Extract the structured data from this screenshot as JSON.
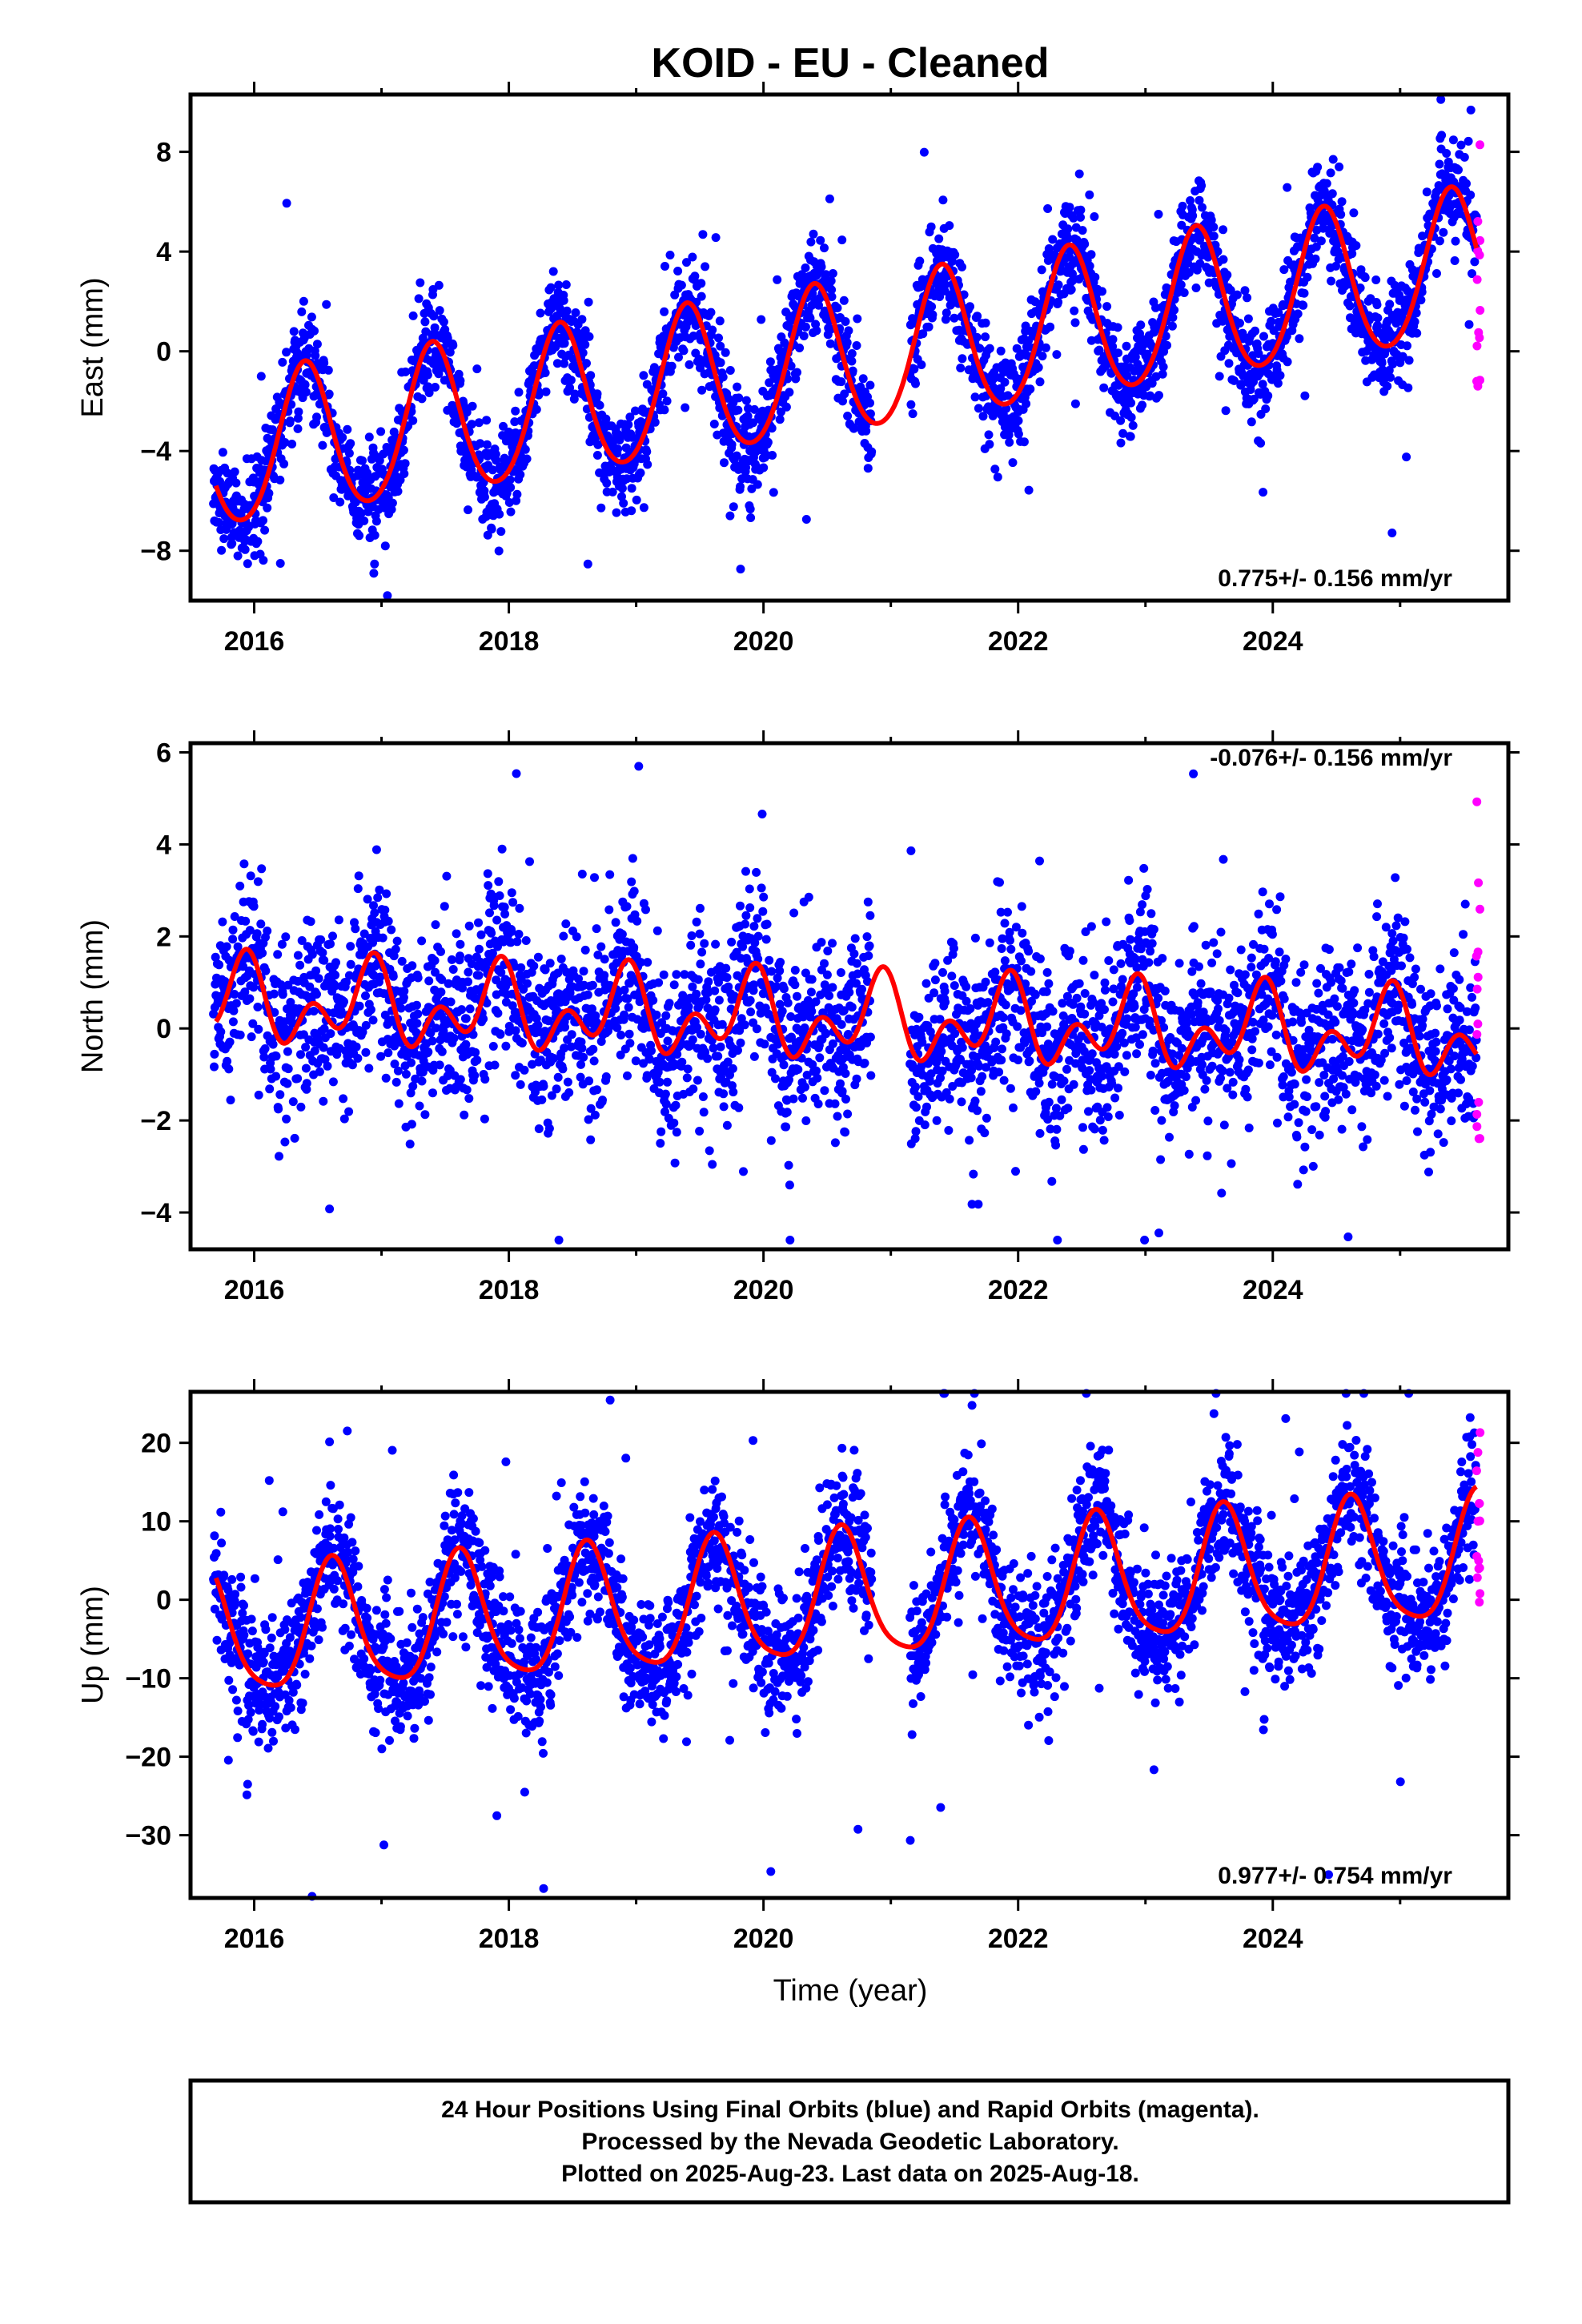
{
  "title": "KOID  - EU - Cleaned",
  "xlabel": "Time (year)",
  "colors": {
    "final": "#0000ff",
    "rapid": "#ff00ff",
    "model": "#ff0000",
    "frame": "#000000"
  },
  "footer": {
    "line1": "24 Hour Positions Using Final Orbits (blue) and Rapid Orbits (magenta).",
    "line2": "Processed by the Nevada Geodetic Laboratory.",
    "line3": "Plotted on 2025-Aug-23. Last data on 2025-Aug-18."
  },
  "chart_data": [
    {
      "type": "scatter",
      "component": "East",
      "ylabel": "East (mm)",
      "rate_label": "0.775+/- 0.156 mm/yr",
      "xlim": [
        2015.5,
        2025.85
      ],
      "ylim": [
        -10.0,
        10.3
      ],
      "xticks": [
        2016,
        2018,
        2020,
        2022,
        2024
      ],
      "yticks": [
        -8,
        -4,
        0,
        4,
        8
      ],
      "data_start": 2015.68,
      "rapid_start": 2025.6,
      "data_end": 2025.63,
      "gaps": [
        [
          2020.85,
          2021.15
        ]
      ],
      "series": [
        {
          "name": "Final Orbits (blue)",
          "trend": {
            "t0": 2020.5,
            "offset": -0.5,
            "rate": 0.775
          },
          "annual_amplitude": 3.0,
          "annual_peak": 0.4,
          "semiannual_amplitude": 0.3,
          "semiannual_peak": 0.4,
          "scatter": 1.0,
          "outlier_fraction": 0.03,
          "outlier_scale": 3.0
        },
        {
          "name": "Rapid Orbits (magenta)",
          "y_range": [
            -1.5,
            9.0
          ]
        }
      ],
      "model_fit": {
        "name": "model",
        "start": 2015.7,
        "end": 2025.6
      }
    },
    {
      "type": "scatter",
      "component": "North",
      "ylabel": "North (mm)",
      "rate_label": "-0.076+/- 0.156 mm/yr",
      "xlim": [
        2015.5,
        2025.85
      ],
      "ylim": [
        -4.8,
        6.2
      ],
      "xticks": [
        2016,
        2018,
        2020,
        2022,
        2024
      ],
      "yticks": [
        -4,
        -2,
        0,
        2,
        4,
        6
      ],
      "data_start": 2015.68,
      "rapid_start": 2025.6,
      "data_end": 2025.63,
      "gaps": [
        [
          2020.85,
          2021.15
        ]
      ],
      "series": [
        {
          "name": "Final Orbits (blue)",
          "trend": {
            "t0": 2020.5,
            "offset": 0.2,
            "rate": -0.076
          },
          "annual_amplitude": 0.6,
          "annual_peak": 0.9,
          "semiannual_amplitude": 0.6,
          "semiannual_peak": 0.95,
          "scatter": 0.95,
          "outlier_fraction": 0.03,
          "outlier_scale": 2.5
        },
        {
          "name": "Rapid Orbits (magenta)",
          "y_range": [
            -2.7,
            6.0
          ]
        }
      ],
      "model_fit": {
        "name": "model",
        "start": 2015.7,
        "end": 2025.6
      }
    },
    {
      "type": "scatter",
      "component": "Up",
      "ylabel": "Up (mm)",
      "rate_label": "0.977+/- 0.754 mm/yr",
      "xlim": [
        2015.5,
        2025.85
      ],
      "ylim": [
        -38.0,
        26.5
      ],
      "xticks": [
        2016,
        2018,
        2020,
        2022,
        2024
      ],
      "yticks": [
        -30,
        -20,
        -10,
        0,
        10,
        20
      ],
      "data_start": 2015.68,
      "rapid_start": 2025.6,
      "data_end": 2025.63,
      "gaps": [
        [
          2020.85,
          2021.15
        ]
      ],
      "series": [
        {
          "name": "Final Orbits (blue)",
          "trend": {
            "t0": 2020.5,
            "offset": 0.0,
            "rate": 0.977
          },
          "annual_amplitude": 8.0,
          "annual_peak": 0.62,
          "semiannual_amplitude": 1.5,
          "semiannual_peak": 0.6,
          "scatter": 4.0,
          "outlier_fraction": 0.04,
          "outlier_scale": 3.5
        },
        {
          "name": "Rapid Orbits (magenta)",
          "y_range": [
            -0.5,
            22.0
          ]
        }
      ],
      "model_fit": {
        "name": "model",
        "start": 2015.7,
        "end": 2025.6
      }
    }
  ]
}
